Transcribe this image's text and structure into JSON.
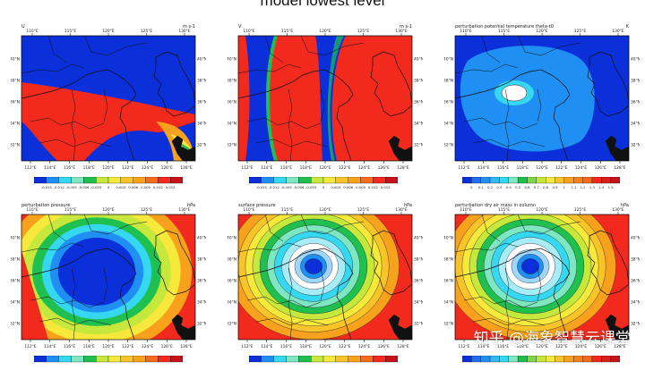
{
  "figure": {
    "title": "model lowest level",
    "watermark": "知乎 @海象智慧云课堂"
  },
  "colors": {
    "blue": "#0b2fd8",
    "lightblue": "#1f8ff3",
    "cyan": "#35d8f0",
    "green": "#20c050",
    "yellow": "#f6e93c",
    "orange": "#f7a11c",
    "red": "#f12a1d",
    "map": "#111111"
  },
  "chart_data": [
    {
      "type": "heatmap",
      "id": "u",
      "title": "U",
      "units": "m s-1",
      "top_ticks": [
        "110°E",
        "115°E",
        "120°E",
        "125°E",
        "130°E"
      ],
      "bottom_ticks": [
        "112°E",
        "114°E",
        "116°E",
        "118°E",
        "120°E",
        "122°E",
        "124°E",
        "126°E",
        "128°E"
      ],
      "left_ticks": [
        "40°N",
        "38°N",
        "36°N",
        "34°N",
        "32°N"
      ],
      "right_ticks": [
        "40°N",
        "38°N",
        "36°N",
        "34°N",
        "32°N"
      ],
      "colorbar": [
        "-0.015",
        "-0.012",
        "-0.009",
        "-0.006",
        "-0.003",
        "0",
        "0.003",
        "0.006",
        "0.009",
        "0.012",
        "0.015"
      ]
    },
    {
      "type": "heatmap",
      "id": "v",
      "title": "V",
      "units": "m s-1",
      "top_ticks": [
        "110°E",
        "115°E",
        "120°E",
        "125°E",
        "130°E"
      ],
      "bottom_ticks": [
        "112°E",
        "114°E",
        "116°E",
        "118°E",
        "120°E",
        "122°E",
        "124°E",
        "126°E",
        "128°E"
      ],
      "left_ticks": [
        "40°N",
        "38°N",
        "36°N",
        "34°N",
        "32°N"
      ],
      "right_ticks": [
        "40°N",
        "38°N",
        "36°N",
        "34°N",
        "32°N"
      ],
      "colorbar": [
        "-0.015",
        "-0.012",
        "-0.009",
        "-0.006",
        "-0.003",
        "0",
        "0.003",
        "0.006",
        "0.009",
        "0.012",
        "0.015"
      ]
    },
    {
      "type": "heatmap",
      "id": "theta",
      "title": "perturbation potential temperature theta-t0",
      "units": "K",
      "top_ticks": [
        "110°E",
        "115°E",
        "120°E",
        "125°E",
        "130°E"
      ],
      "bottom_ticks": [
        "112°E",
        "114°E",
        "116°E",
        "118°E",
        "120°E",
        "122°E",
        "124°E",
        "126°E",
        "128°E"
      ],
      "left_ticks": [
        "40°N",
        "38°N",
        "36°N",
        "34°N",
        "32°N"
      ],
      "right_ticks": [
        "40°N",
        "38°N",
        "36°N",
        "34°N",
        "32°N"
      ],
      "colorbar": [
        "0",
        "0.1",
        "0.2",
        "0.3",
        "0.4",
        "0.5",
        "0.6",
        "0.7",
        "0.8",
        "0.9",
        "1",
        "1.1",
        "1.2",
        "1.3",
        "1.4",
        "1.5"
      ]
    },
    {
      "type": "heatmap",
      "id": "pp",
      "title": "perturbation pressure",
      "units": "hPa",
      "top_ticks": [
        "110°E",
        "115°E",
        "120°E",
        "125°E",
        "130°E"
      ],
      "bottom_ticks": [
        "112°E",
        "114°E",
        "116°E",
        "118°E",
        "120°E",
        "122°E",
        "124°E",
        "126°E",
        "128°E"
      ],
      "left_ticks": [
        "40°N",
        "38°N",
        "36°N",
        "34°N",
        "32°N"
      ],
      "right_ticks": [
        "40°N",
        "38°N",
        "36°N",
        "34°N",
        "32°N"
      ],
      "colorbar": []
    },
    {
      "type": "heatmap",
      "id": "sp",
      "title": "surface pressure",
      "units": "hPa",
      "top_ticks": [
        "110°E",
        "115°E",
        "120°E",
        "125°E",
        "130°E"
      ],
      "bottom_ticks": [
        "112°E",
        "114°E",
        "116°E",
        "118°E",
        "120°E",
        "122°E",
        "124°E",
        "126°E",
        "128°E"
      ],
      "left_ticks": [
        "40°N",
        "38°N",
        "36°N",
        "34°N",
        "32°N"
      ],
      "right_ticks": [
        "40°N",
        "38°N",
        "36°N",
        "34°N",
        "32°N"
      ],
      "colorbar": []
    },
    {
      "type": "heatmap",
      "id": "mu",
      "title": "perturbation dry air mass in column",
      "units": "hPa",
      "top_ticks": [
        "110°E",
        "115°E",
        "120°E",
        "125°E",
        "130°E"
      ],
      "bottom_ticks": [
        "112°E",
        "114°E",
        "116°E",
        "118°E",
        "120°E",
        "122°E",
        "124°E",
        "126°E",
        "128°E"
      ],
      "left_ticks": [
        "40°N",
        "38°N",
        "36°N",
        "34°N",
        "32°N"
      ],
      "right_ticks": [
        "40°N",
        "38°N",
        "36°N",
        "34°N",
        "32°N"
      ],
      "colorbar": []
    }
  ]
}
